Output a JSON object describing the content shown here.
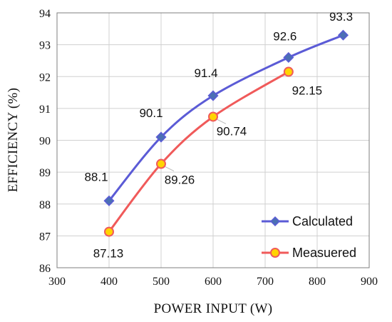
{
  "chart_data": {
    "type": "line",
    "xlabel": "POWER INPUT (W)",
    "ylabel": "EFFICIENCY (%)",
    "xlim": [
      300,
      900
    ],
    "ylim": [
      86,
      94
    ],
    "xticks": [
      "300",
      "400",
      "500",
      "600",
      "700",
      "800",
      "900"
    ],
    "yticks": [
      "86",
      "87",
      "88",
      "89",
      "90",
      "91",
      "92",
      "93",
      "94"
    ],
    "grid": true,
    "legend_position": "bottom-right",
    "series": [
      {
        "name": "Calculated",
        "color": "#5b5bd6",
        "marker": "diamond",
        "marker_color": "#4b6fb5",
        "x": [
          400,
          500,
          600,
          745,
          850
        ],
        "y": [
          88.1,
          90.1,
          91.4,
          92.6,
          93.3
        ],
        "labels": [
          "88.1",
          "90.1",
          "91.4",
          "92.6",
          "93.3"
        ]
      },
      {
        "name": "Measuered",
        "color": "#f05a5a",
        "marker": "circle",
        "marker_color": "#ffd400",
        "x": [
          400,
          500,
          600,
          745
        ],
        "y": [
          87.13,
          89.26,
          90.74,
          92.15
        ],
        "labels": [
          "87.13",
          "89.26",
          "90.74",
          "92.15"
        ]
      }
    ]
  }
}
